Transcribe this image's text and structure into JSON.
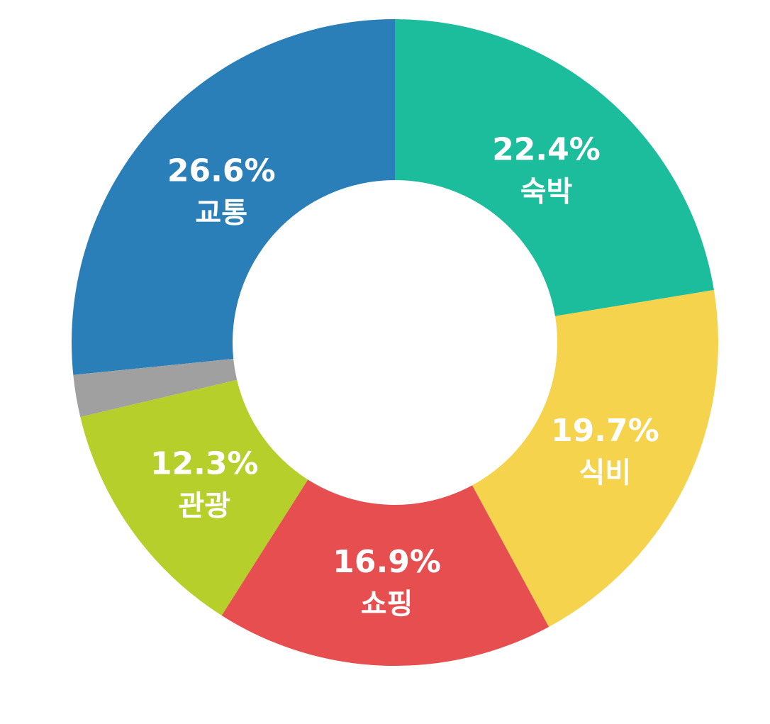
{
  "chart_data": {
    "type": "pie",
    "variant": "donut",
    "title": "",
    "legend": "none",
    "start_angle_deg": 270,
    "direction": "counterclockwise",
    "slices": [
      {
        "category": "교통",
        "value": 26.6,
        "label": "26.6%",
        "color": "#2b7fb8"
      },
      {
        "category": "",
        "value": 2.1,
        "label": "",
        "color": "#a0a0a0"
      },
      {
        "category": "관광",
        "value": 12.3,
        "label": "12.3%",
        "color": "#b6cf2a"
      },
      {
        "category": "쇼핑",
        "value": 16.9,
        "label": "16.9%",
        "color": "#e74e4f"
      },
      {
        "category": "식비",
        "value": 19.7,
        "label": "19.7%",
        "color": "#f6d34d"
      },
      {
        "category": "숙박",
        "value": 22.4,
        "label": "22.4%",
        "color": "#1cbd9c"
      }
    ]
  }
}
